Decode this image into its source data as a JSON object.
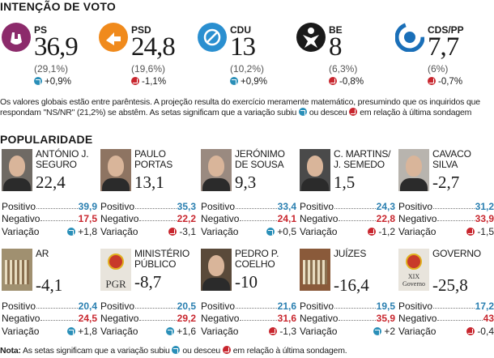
{
  "section_intencao": "INTENÇÃO DE VOTO",
  "section_popularidade": "POPULARIDADE",
  "parties": [
    {
      "name": "PS",
      "value": "36,9",
      "pct": "(29,1%)",
      "var": "+0,9%",
      "dir": "up",
      "color": "#8c2b6b"
    },
    {
      "name": "PSD",
      "value": "24,8",
      "pct": "(19,6%)",
      "var": "-1,1%",
      "dir": "down",
      "color": "#f08a1c"
    },
    {
      "name": "CDU",
      "value": "13",
      "pct": "(10,2%)",
      "var": "+0,9%",
      "dir": "up",
      "color": "#2a8fd0"
    },
    {
      "name": "BE",
      "value": "8",
      "pct": "(6,3%)",
      "var": "-0,8%",
      "dir": "down",
      "color": "#1a1a1a"
    },
    {
      "name": "CDS/PP",
      "value": "7,7",
      "pct": "(6%)",
      "var": "-0,7%",
      "dir": "down",
      "color": "#1a6fb8"
    }
  ],
  "note1": "Os valores globais estão entre parêntesis. A projeção resulta do exercício meramente matemático, presumindo que os inquiridos que respondam \"NS/NR\" (21,2%) se abstêm. As setas significam que a variação subiu",
  "note1_mid": "ou desceu",
  "note1_end": "em relação à última sondagem",
  "labels": {
    "positivo": "Positivo",
    "negativo": "Negativo",
    "variacao": "Variação"
  },
  "figures": [
    {
      "name": "ANTÓNIO J. SEGURO",
      "score": "22,4",
      "pos": "39,9",
      "neg": "17,5",
      "var": "+1,8",
      "dir": "up"
    },
    {
      "name": "PAULO PORTAS",
      "score": "13,1",
      "pos": "35,3",
      "neg": "22,2",
      "var": "-3,1",
      "dir": "down"
    },
    {
      "name": "JERÓNIMO DE SOUSA",
      "score": "9,3",
      "pos": "33,4",
      "neg": "24,1",
      "var": "+0,5",
      "dir": "up"
    },
    {
      "name": "C. MARTINS/ J. SEMEDO",
      "score": "1,5",
      "pos": "24,3",
      "neg": "22,8",
      "var": "-1,2",
      "dir": "down"
    },
    {
      "name": "CAVACO SILVA",
      "score": "-2,7",
      "pos": "31,2",
      "neg": "33,9",
      "var": "-1,5",
      "dir": "down"
    },
    {
      "name": "AR",
      "score": "-4,1",
      "pos": "20,4",
      "neg": "24,5",
      "var": "+1,8",
      "dir": "up"
    },
    {
      "name": "MINISTÉRIO PÚBLICO",
      "score": "-8,7",
      "pos": "20,5",
      "neg": "29,2",
      "var": "+1,6",
      "dir": "up",
      "logo": "PGR"
    },
    {
      "name": "PEDRO P. COELHO",
      "score": "-10",
      "pos": "21,6",
      "neg": "31,6",
      "var": "-1,3",
      "dir": "down"
    },
    {
      "name": "JUÍZES",
      "score": "-16,4",
      "pos": "19,5",
      "neg": "35,9",
      "var": "+2",
      "dir": "up"
    },
    {
      "name": "GOVERNO",
      "score": "-25,8",
      "pos": "17,2",
      "neg": "43",
      "var": "-0,4",
      "dir": "down",
      "logo": "XIX Governo"
    }
  ],
  "note2_bold": "Nota:",
  "note2": "As setas significam que a variação subiu",
  "note2_mid": "ou desceu",
  "note2_end": "em relação à última sondagem."
}
